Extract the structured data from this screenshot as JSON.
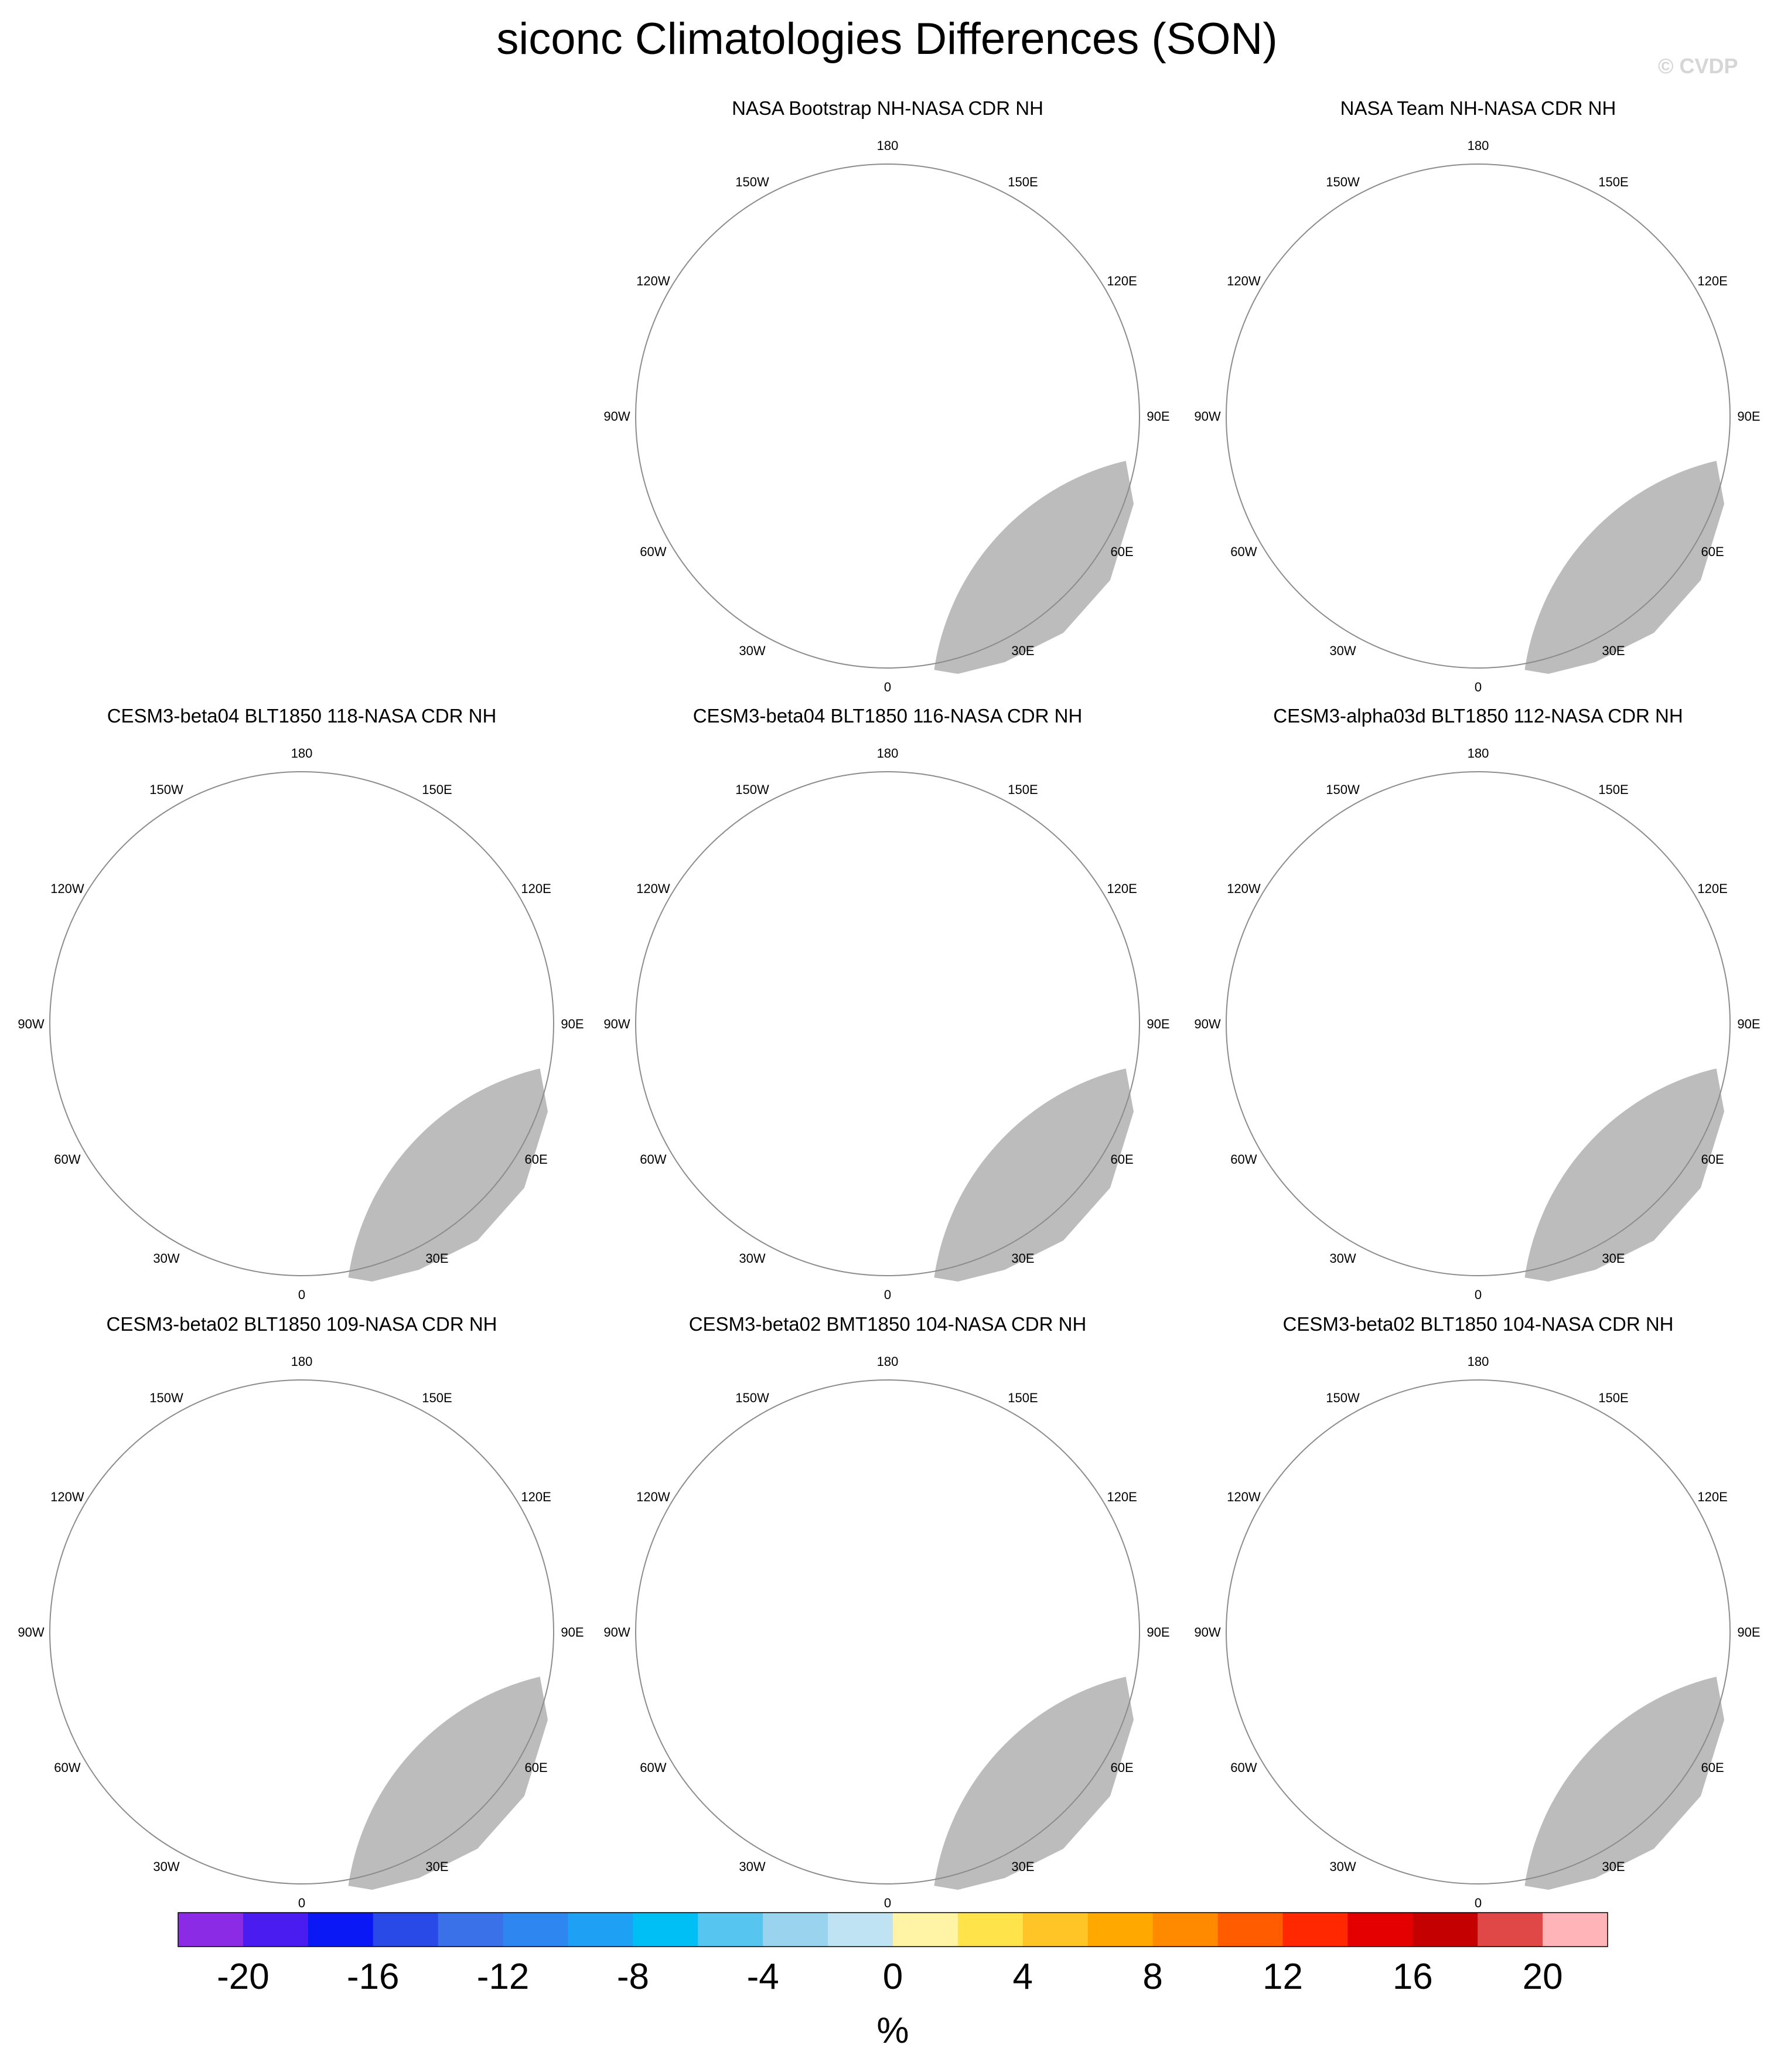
{
  "title": "siconc Climatologies Differences (SON)",
  "watermark": "© CVDP",
  "lon_labels": [
    "180",
    "150E",
    "120E",
    "90E",
    "60E",
    "30E",
    "0",
    "30W",
    "60W",
    "90W",
    "120W",
    "150W"
  ],
  "panels": [
    {
      "title": "NASA Bootstrap NH-NASA CDR NH",
      "pattern": "bootstrap"
    },
    {
      "title": "NASA Team NH-NASA CDR NH",
      "pattern": "team"
    },
    {
      "title": "CESM3-beta04 BLT1850 118-NASA CDR NH",
      "pattern": "model"
    },
    {
      "title": "CESM3-beta04 BLT1850 116-NASA CDR NH",
      "pattern": "model"
    },
    {
      "title": "CESM3-alpha03d BLT1850 112-NASA CDR NH",
      "pattern": "model"
    },
    {
      "title": "CESM3-beta02 BLT1850 109-NASA CDR NH",
      "pattern": "model"
    },
    {
      "title": "CESM3-beta02 BMT1850 104-NASA CDR NH",
      "pattern": "model"
    },
    {
      "title": "CESM3-beta02 BLT1850 104-NASA CDR NH",
      "pattern": "model"
    }
  ],
  "colorbar": {
    "colors": [
      "#8b2be6",
      "#4a1cf0",
      "#0a18f5",
      "#2a4ae8",
      "#3a70e8",
      "#2e86f0",
      "#1ea0f4",
      "#00bff5",
      "#56c6f0",
      "#9ad3ee",
      "#bfe3f3",
      "#fff3a6",
      "#ffe34a",
      "#ffc425",
      "#ffa800",
      "#ff8a00",
      "#ff5c00",
      "#ff2800",
      "#e50000",
      "#c40000",
      "#e04848",
      "#ffb4b8"
    ],
    "tick_labels": [
      "-20",
      "-16",
      "-12",
      "-8",
      "-4",
      "0",
      "4",
      "8",
      "12",
      "16",
      "20"
    ],
    "unit": "%"
  }
}
